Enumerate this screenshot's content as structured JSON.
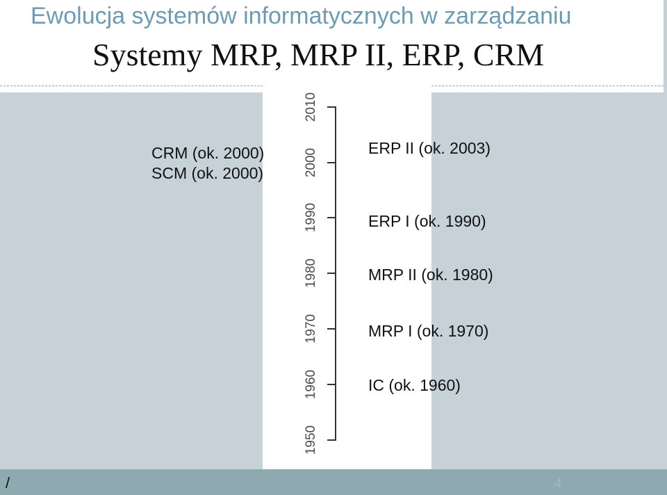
{
  "header": {
    "subtitle": "Ewolucja systemów informatycznych w zarządzaniu",
    "title": "Systemy MRP, MRP II, ERP, CRM"
  },
  "timeline": {
    "years": [
      "1950",
      "1960",
      "1970",
      "1980",
      "1990",
      "2000",
      "2010"
    ],
    "left_entries": [
      "CRM (ok. 2000)",
      "SCM (ok. 2000)"
    ],
    "right_entries": [
      "ERP II (ok. 2003)",
      "ERP I (ok. 1990)",
      "MRP II (ok. 1980)",
      "MRP I (ok. 1970)",
      "IC (ok. 1960)"
    ]
  },
  "footer": {
    "slash": "/",
    "page_number": "4"
  },
  "colors": {
    "subtitle": "#6e9bb2",
    "content_background": "#c7d1d8",
    "footer_bar": "#8fa9b1"
  }
}
